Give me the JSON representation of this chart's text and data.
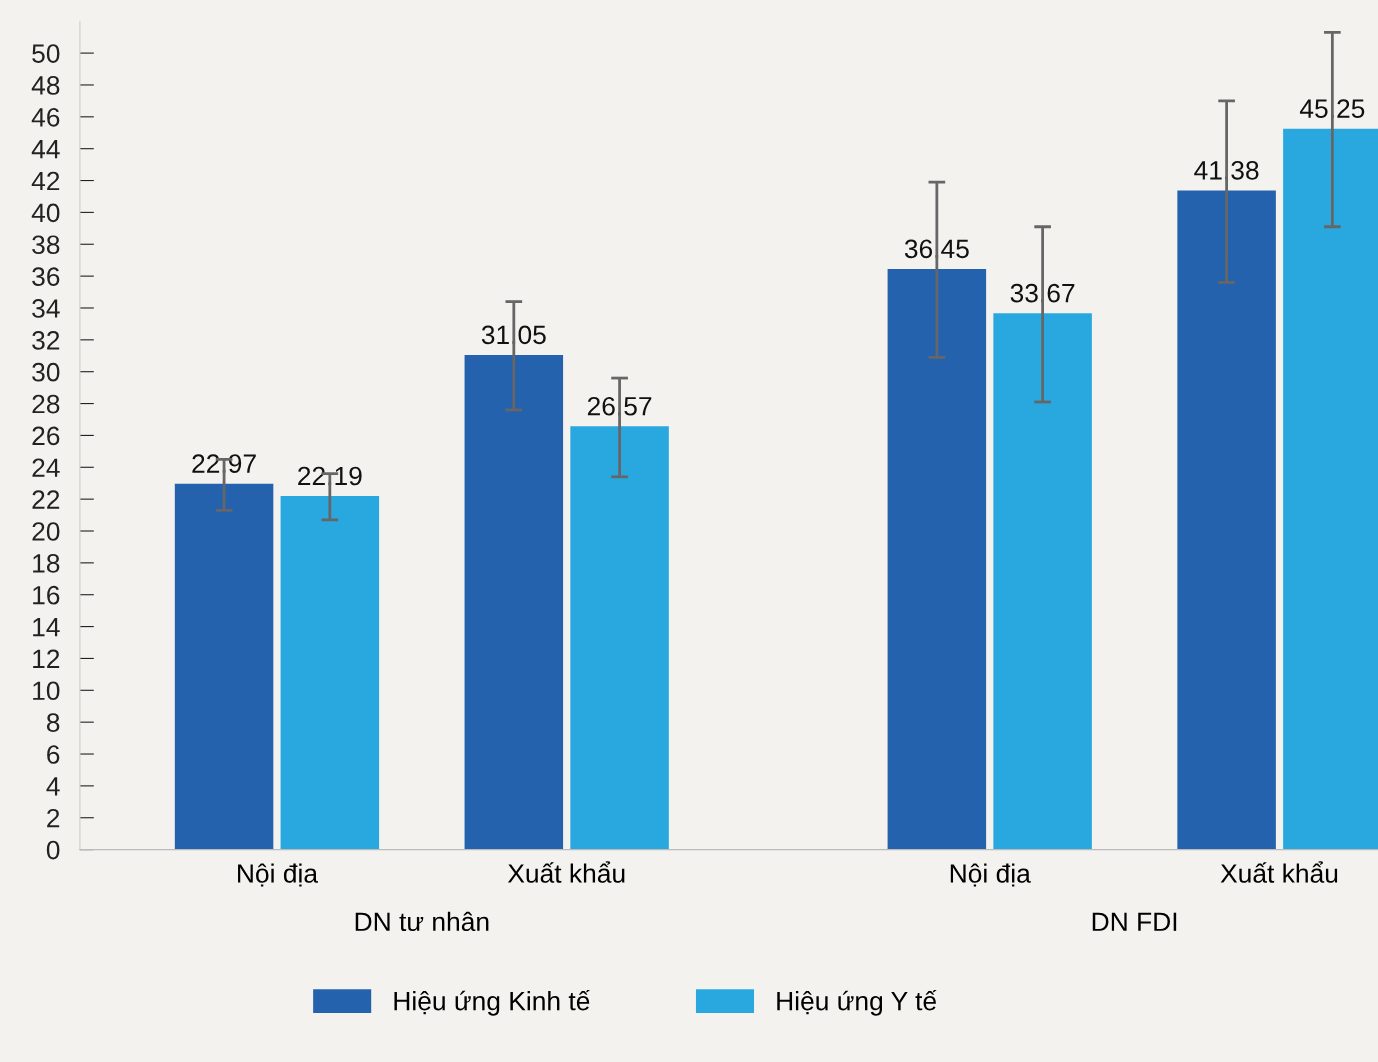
{
  "chart_data": {
    "type": "bar",
    "categories": [
      "Nội địa",
      "Xuất khẩu",
      "Nội địa",
      "Xuất khẩu"
    ],
    "series": [
      {
        "name": "Hiệu ứng Kinh tế",
        "color": "#2562ae",
        "values": [
          22.97,
          31.05,
          36.45,
          41.38
        ],
        "errors": [
          [
            21.3,
            24.5
          ],
          [
            27.6,
            34.4
          ],
          [
            30.9,
            41.9
          ],
          [
            35.6,
            47.0
          ]
        ]
      },
      {
        "name": "Hiệu ứng Y tế",
        "color": "#29a8e0",
        "values": [
          22.19,
          26.57,
          33.67,
          45.25
        ],
        "errors": [
          [
            20.7,
            23.6
          ],
          [
            23.4,
            29.6
          ],
          [
            28.1,
            39.1
          ],
          [
            39.1,
            51.3
          ]
        ]
      }
    ],
    "annotations": [
      "DN tư nhân",
      "DN FDI"
    ],
    "ylim": [
      0,
      52
    ],
    "yticks": [
      0,
      2,
      4,
      6,
      8,
      10,
      12,
      14,
      16,
      18,
      20,
      22,
      24,
      26,
      28,
      30,
      32,
      34,
      36,
      38,
      40,
      42,
      44,
      46,
      48,
      50
    ],
    "data_labels": true,
    "grid": false,
    "legend": "bottom"
  }
}
